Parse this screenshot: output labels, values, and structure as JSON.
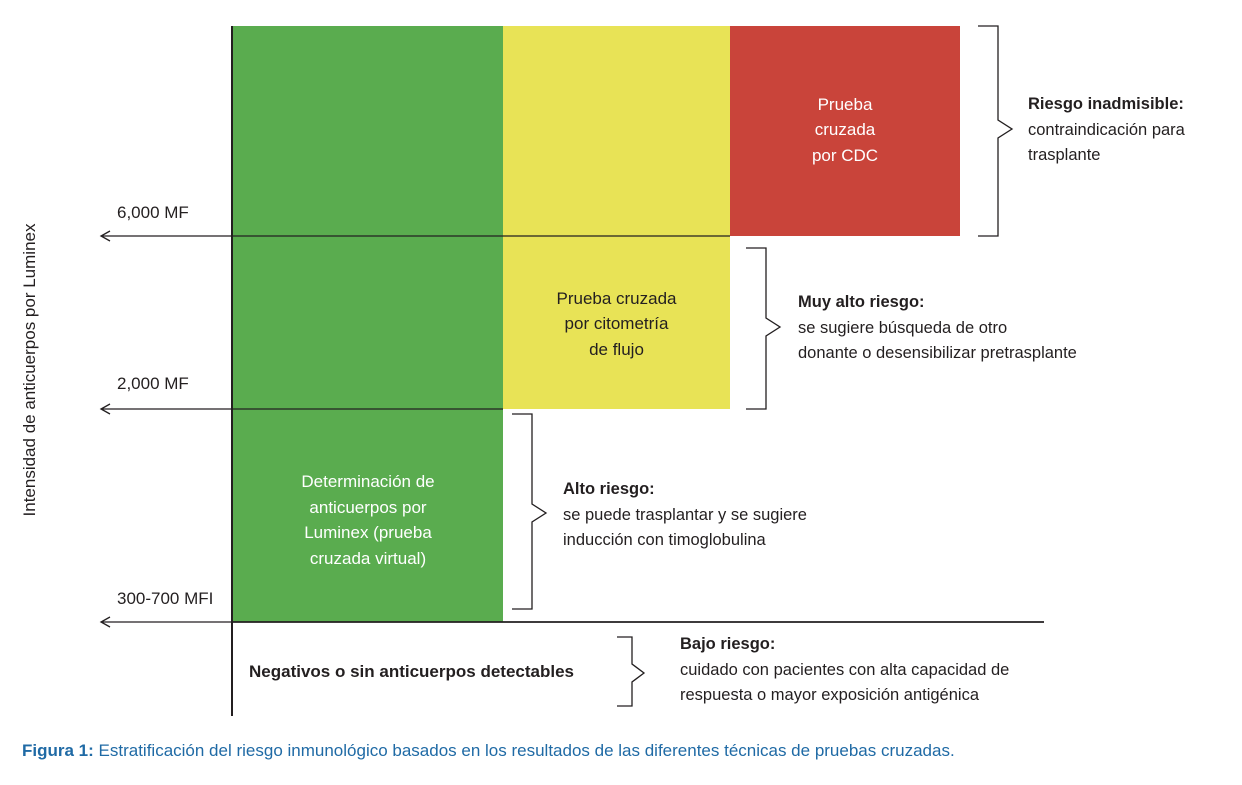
{
  "colors": {
    "green": "#5aac4f",
    "yellow": "#e8e356",
    "red": "#c9443a",
    "caption_blue": "#1f6aa5",
    "line": "#231f20"
  },
  "y_axis_label": "Intensidad de anticuerpos por Luminex",
  "thresholds": {
    "high": "6,000 MF",
    "mid": "2,000 MF",
    "low": "300-700 MFI"
  },
  "blocks": {
    "red": "Prueba\ncruzada\npor CDC",
    "yellow": "Prueba cruzada\npor citometría\nde flujo",
    "green": "Determinación de\nanticuerpos por\nLuminex (prueba\ncruzada virtual)"
  },
  "risks": {
    "inadmissible": {
      "title": "Riesgo inadmisible:",
      "desc": "contraindicación para\ntrasplante"
    },
    "very_high": {
      "title": "Muy alto riesgo:",
      "desc": "se sugiere búsqueda de otro\ndonante o desensibilizar pretrasplante"
    },
    "high": {
      "title": "Alto riesgo:",
      "desc": "se puede trasplantar y se sugiere\ninducción con timoglobulina"
    },
    "low": {
      "title": "Bajo riesgo:",
      "desc": "cuidado con pacientes con alta capacidad de\nrespuesta o mayor exposición antigénica"
    }
  },
  "negatives_label": "Negativos o sin anticuerpos detectables",
  "caption": {
    "lead": "Figura 1:",
    "text": " Estratificación del riesgo inmunológico basados en los resultados de las diferentes técnicas de pruebas cruzadas."
  }
}
